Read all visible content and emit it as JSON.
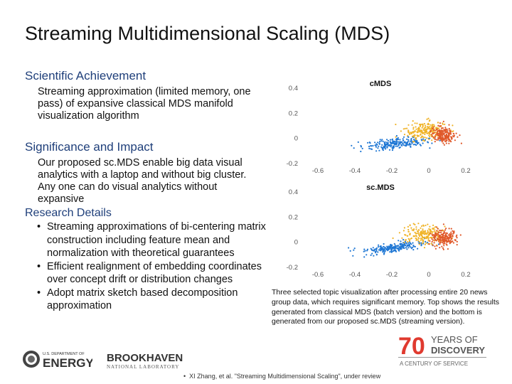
{
  "slide": {
    "title": "Streaming Multidimensional Scaling (MDS)",
    "sections": {
      "achievement_heading": "Scientific Achievement",
      "achievement_text": "Streaming approximation (limited memory, one pass) of expansive classical MDS manifold visualization algorithm",
      "impact_heading": "Significance and Impact",
      "impact_text": "Our proposed sc.MDS enable big data visual analytics with a laptop and without big cluster. Any one can do visual analytics without expansive",
      "details_heading": "Research Details",
      "details_bullets": [
        "Streaming approximations of bi-centering matrix construction including feature mean and normalization with theoretical guarantees",
        "Efficient realignment of embedding coordinates over concept drift or distribution changes",
        "Adopt matrix sketch based decomposition approximation"
      ]
    },
    "caption": "Three selected topic visualization after processing entire 20 news group data, which requires significant memory. Top shows the results generated from classical MDS (batch version) and the bottom is generated from our proposed sc.MDS (streaming version).",
    "footer_note": "XI Zhang, et al. \"Streaming Multidimensional Scaling\", under review",
    "bullet_glyph": "•",
    "logos": {
      "doe_top": "U.S. DEPARTMENT OF",
      "doe_main": "ENERGY",
      "bnl_main": "BROOKHAVEN",
      "bnl_sub": "NATIONAL LABORATORY",
      "anniv_number": "70",
      "anniv_line1": "YEARS OF",
      "anniv_line2": "DISCOVERY",
      "anniv_tagline": "A CENTURY OF SERVICE"
    }
  },
  "chart_data": [
    {
      "type": "scatter",
      "title": "cMDS",
      "xlim": [
        -0.7,
        0.2
      ],
      "ylim": [
        -0.2,
        0.4
      ],
      "x_ticks": [
        "-0.6",
        "-0.4",
        "-0.2",
        "0",
        "0.2"
      ],
      "y_ticks": [
        "0.4",
        "0.2",
        "0",
        "-0.2"
      ],
      "series": [
        {
          "color": "#1f77d4",
          "clusters": [
            {
              "center": [
                -0.18,
                -0.04
              ],
              "spread": [
                0.16,
                0.05
              ],
              "count": 220
            }
          ]
        },
        {
          "color": "#f0b429",
          "clusters": [
            {
              "center": [
                -0.02,
                0.06
              ],
              "spread": [
                0.1,
                0.07
              ],
              "count": 200
            }
          ]
        },
        {
          "color": "#e0592a",
          "clusters": [
            {
              "center": [
                0.08,
                0.03
              ],
              "spread": [
                0.06,
                0.06
              ],
              "count": 200
            }
          ]
        }
      ]
    },
    {
      "type": "scatter",
      "title": "sc.MDS",
      "xlim": [
        -0.7,
        0.2
      ],
      "ylim": [
        -0.2,
        0.4
      ],
      "x_ticks": [
        "-0.6",
        "-0.4",
        "-0.2",
        "0",
        "0.2"
      ],
      "y_ticks": [
        "0.4",
        "0.2",
        "0",
        "-0.2"
      ],
      "series": [
        {
          "color": "#1f77d4",
          "clusters": [
            {
              "center": [
                -0.18,
                -0.04
              ],
              "spread": [
                0.16,
                0.05
              ],
              "count": 220
            }
          ]
        },
        {
          "color": "#f0b429",
          "clusters": [
            {
              "center": [
                -0.02,
                0.06
              ],
              "spread": [
                0.1,
                0.07
              ],
              "count": 200
            }
          ]
        },
        {
          "color": "#e0592a",
          "clusters": [
            {
              "center": [
                0.08,
                0.03
              ],
              "spread": [
                0.06,
                0.06
              ],
              "count": 200
            }
          ]
        }
      ]
    }
  ]
}
